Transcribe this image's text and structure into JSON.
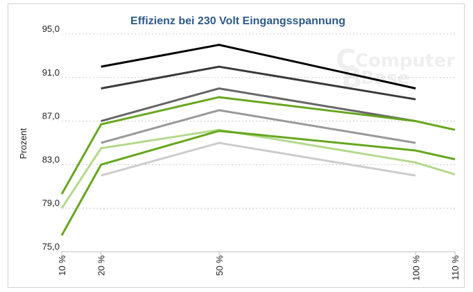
{
  "chart_data": {
    "type": "line",
    "title": "Effizienz bei 230 Volt Eingangsspannung",
    "xlabel": "",
    "ylabel": "Prozent",
    "x": [
      10,
      20,
      50,
      100,
      110
    ],
    "x_tick_labels": [
      "10 %",
      "20 %",
      "50 %",
      "100 %",
      "110 %"
    ],
    "y_ticks": [
      75,
      79,
      83,
      87,
      91,
      95
    ],
    "y_tick_labels": [
      "75,0",
      "79,0",
      "83,0",
      "87,0",
      "91,0",
      "95,0"
    ],
    "ylim": [
      75,
      95
    ],
    "xlim": [
      10,
      110
    ],
    "grid": "horizontal-dotted",
    "legend": "none",
    "watermark": [
      "Computer",
      "Base"
    ],
    "series": [
      {
        "name": "series-1",
        "color": "#000000",
        "values": [
          null,
          92.0,
          94.0,
          90.0,
          null
        ]
      },
      {
        "name": "series-2",
        "color": "#3a3a3a",
        "values": [
          null,
          90.0,
          92.0,
          89.0,
          null
        ]
      },
      {
        "name": "series-3",
        "color": "#666666",
        "values": [
          null,
          87.0,
          90.0,
          87.0,
          null
        ]
      },
      {
        "name": "series-4",
        "color": "#66a61e",
        "values": [
          80.3,
          86.7,
          89.2,
          87.0,
          86.2
        ]
      },
      {
        "name": "series-5",
        "color": "#999999",
        "values": [
          null,
          85.0,
          88.0,
          85.0,
          null
        ]
      },
      {
        "name": "series-6",
        "color": "#b3d98c",
        "values": [
          79.0,
          84.5,
          86.2,
          83.2,
          82.1
        ]
      },
      {
        "name": "series-7",
        "color": "#66a61e",
        "values": [
          76.5,
          83.0,
          86.1,
          84.3,
          83.5
        ]
      },
      {
        "name": "series-8",
        "color": "#cccccc",
        "values": [
          null,
          82.0,
          85.0,
          82.0,
          null
        ]
      }
    ]
  }
}
